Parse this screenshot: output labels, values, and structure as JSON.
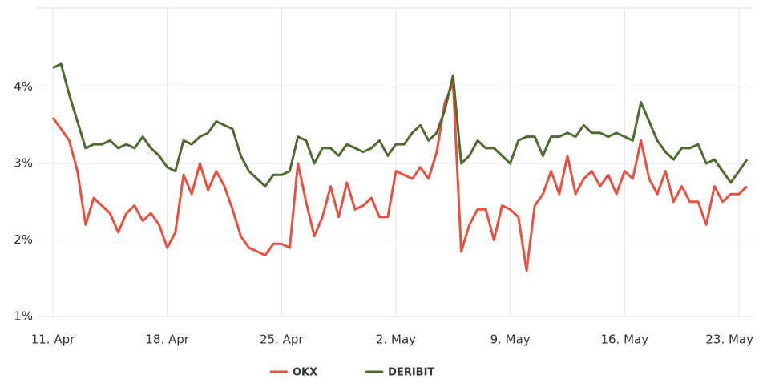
{
  "chart_data": {
    "type": "line",
    "categories": [
      "11. Apr",
      null,
      null,
      null,
      null,
      null,
      null,
      null,
      null,
      null,
      null,
      null,
      null,
      null,
      "18. Apr",
      null,
      null,
      null,
      null,
      null,
      null,
      null,
      null,
      null,
      null,
      null,
      null,
      null,
      "25. Apr",
      null,
      null,
      null,
      null,
      null,
      null,
      null,
      null,
      null,
      null,
      null,
      null,
      null,
      "2. May",
      null,
      null,
      null,
      null,
      null,
      null,
      null,
      null,
      null,
      null,
      null,
      null,
      null,
      "9. May",
      null,
      null,
      null,
      null,
      null,
      null,
      null,
      null,
      null,
      null,
      null,
      null,
      null,
      "16. May",
      null,
      null,
      null,
      null,
      null,
      null,
      null,
      null,
      null,
      null,
      null,
      null,
      null,
      "23. May",
      null
    ],
    "series": [
      {
        "name": "OKX",
        "color": "#e8503f",
        "values": [
          3.6,
          3.45,
          3.3,
          2.9,
          2.2,
          2.55,
          2.45,
          2.35,
          2.1,
          2.35,
          2.45,
          2.25,
          2.35,
          2.2,
          1.9,
          2.1,
          2.85,
          2.6,
          3.0,
          2.65,
          2.9,
          2.7,
          2.4,
          2.05,
          1.9,
          1.85,
          1.8,
          1.95,
          1.95,
          1.9,
          3.0,
          2.5,
          2.05,
          2.3,
          2.7,
          2.3,
          2.75,
          2.4,
          2.45,
          2.55,
          2.3,
          2.3,
          2.9,
          2.85,
          2.8,
          2.95,
          2.8,
          3.15,
          3.8,
          4.05,
          1.85,
          2.2,
          2.4,
          2.4,
          2.0,
          2.45,
          2.4,
          2.3,
          1.6,
          2.45,
          2.6,
          2.9,
          2.6,
          3.1,
          2.6,
          2.8,
          2.9,
          2.7,
          2.85,
          2.6,
          2.9,
          2.8,
          3.3,
          2.8,
          2.6,
          2.9,
          2.5,
          2.7,
          2.5,
          2.5,
          2.2,
          2.7,
          2.5,
          2.6,
          2.6,
          2.7
        ]
      },
      {
        "name": "DERIBIT",
        "color": "#4e6b30",
        "values": [
          4.25,
          4.3,
          3.9,
          3.55,
          3.2,
          3.25,
          3.25,
          3.3,
          3.2,
          3.25,
          3.2,
          3.35,
          3.2,
          3.1,
          2.95,
          2.9,
          3.3,
          3.25,
          3.35,
          3.4,
          3.55,
          3.5,
          3.45,
          3.1,
          2.9,
          2.8,
          2.7,
          2.85,
          2.85,
          2.9,
          3.35,
          3.3,
          3.0,
          3.2,
          3.2,
          3.1,
          3.25,
          3.2,
          3.15,
          3.2,
          3.3,
          3.1,
          3.25,
          3.25,
          3.4,
          3.5,
          3.3,
          3.4,
          3.7,
          4.15,
          3.0,
          3.1,
          3.3,
          3.2,
          3.2,
          3.1,
          3.0,
          3.3,
          3.35,
          3.35,
          3.1,
          3.35,
          3.35,
          3.4,
          3.35,
          3.5,
          3.4,
          3.4,
          3.35,
          3.4,
          3.35,
          3.3,
          3.8,
          3.55,
          3.3,
          3.15,
          3.05,
          3.2,
          3.2,
          3.25,
          3.0,
          3.05,
          2.9,
          2.75,
          2.9,
          3.05
        ]
      }
    ],
    "ylim": [
      1,
      5
    ],
    "yticks": [
      {
        "value": 1,
        "label": "1%"
      },
      {
        "value": 2,
        "label": "2%"
      },
      {
        "value": 3,
        "label": "3%"
      },
      {
        "value": 4,
        "label": "4%"
      }
    ],
    "grid": true
  }
}
